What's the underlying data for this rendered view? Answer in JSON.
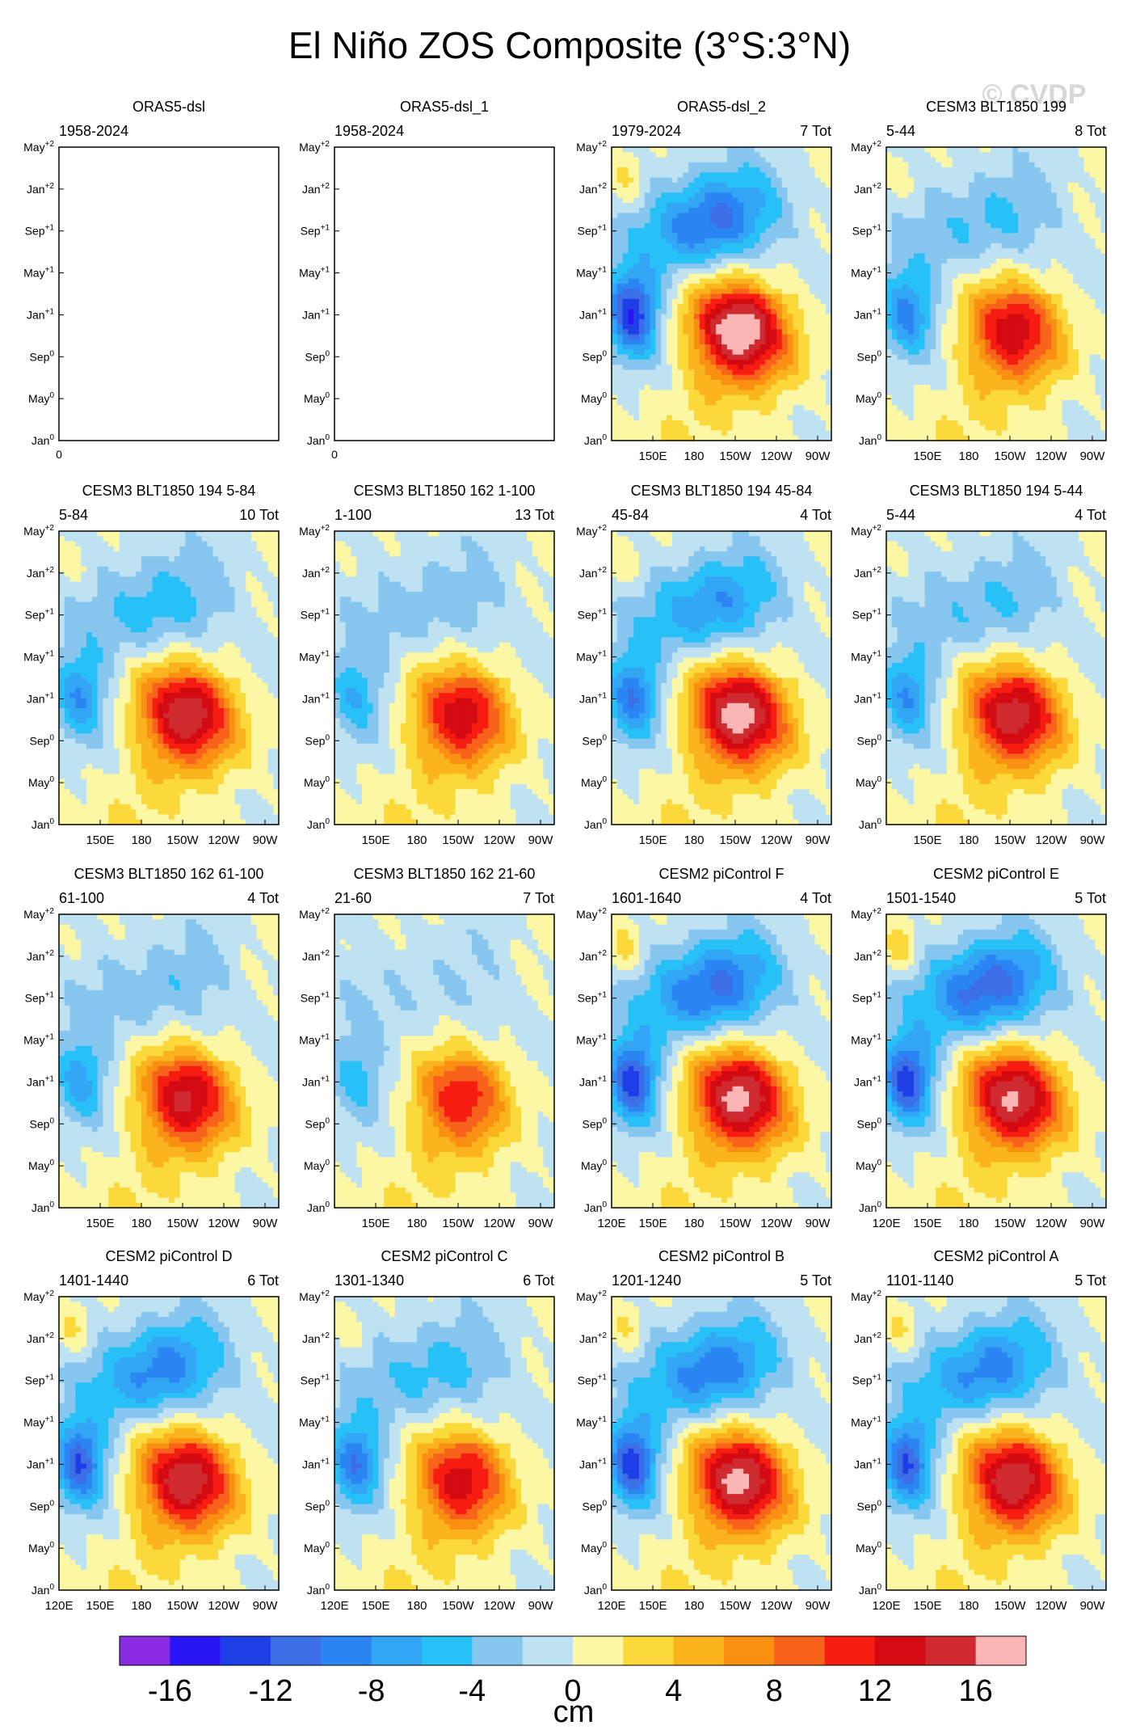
{
  "title": "El Niño ZOS Composite (3°S:3°N)",
  "watermark": "© CVDP",
  "chart_data": {
    "type": "heatmap",
    "title": "El Niño ZOS Composite (3°S:3°N)",
    "x_ticks_full": [
      "120E",
      "150E",
      "180",
      "150W",
      "120W",
      "90W"
    ],
    "y_ticks": [
      {
        "base": "Jan",
        "sup": "0"
      },
      {
        "base": "May",
        "sup": "0"
      },
      {
        "base": "Sep",
        "sup": "0"
      },
      {
        "base": "Jan",
        "sup": "+1"
      },
      {
        "base": "May",
        "sup": "+1"
      },
      {
        "base": "Sep",
        "sup": "+1"
      },
      {
        "base": "Jan",
        "sup": "+2"
      },
      {
        "base": "May",
        "sup": "+2"
      }
    ],
    "colorbar": {
      "unit": "cm",
      "levels": [
        -16,
        -12,
        -8,
        -4,
        0,
        4,
        8,
        12,
        16
      ],
      "colors": [
        "#8a2be2",
        "#2a15f5",
        "#1f3fe6",
        "#3c6ee6",
        "#2b86f4",
        "#32a5f5",
        "#27c1f7",
        "#87c6ee",
        "#bfe2f2",
        "#fcf7a4",
        "#fbd93b",
        "#fbb41e",
        "#f99012",
        "#f9621a",
        "#f71c11",
        "#d30a11",
        "#cf2a30",
        "#fcb5b5"
      ]
    },
    "panels": [
      {
        "title": "ORAS5-dsl",
        "period": "1958-2024",
        "count": "",
        "empty": true,
        "amp": 0,
        "kelvin": 0,
        "west": 0,
        "xl": 0,
        "x_zero": "0"
      },
      {
        "title": "ORAS5-dsl_1",
        "period": "1958-2024",
        "count": "",
        "empty": true,
        "amp": 0,
        "kelvin": 0,
        "west": 0,
        "xl": 0,
        "x_zero": "0"
      },
      {
        "title": "ORAS5-dsl_2",
        "period": "1979-2024",
        "count": "7 Tot",
        "amp": 16,
        "kelvin": 0.9,
        "west": 13,
        "xl": 1
      },
      {
        "title": "CESM3 BLT1850 199",
        "period": "5-44",
        "count": "8 Tot",
        "amp": 11,
        "kelvin": 0.5,
        "west": 8,
        "xl": 1
      },
      {
        "title": "CESM3 BLT1850 194 5-84",
        "period": "5-84",
        "count": "10 Tot",
        "amp": 13.5,
        "kelvin": 0.5,
        "west": 7,
        "xl": 1
      },
      {
        "title": "CESM3 BLT1850 162 1-100",
        "period": "1-100",
        "count": "13 Tot",
        "amp": 11,
        "kelvin": 0.35,
        "west": 5,
        "xl": 1
      },
      {
        "title": "CESM3 BLT1850 194 45-84",
        "period": "45-84",
        "count": "4 Tot",
        "amp": 15,
        "kelvin": 0.7,
        "west": 9,
        "xl": 1
      },
      {
        "title": "CESM3 BLT1850 194 5-44",
        "period": "5-44",
        "count": "4 Tot",
        "amp": 13,
        "kelvin": 0.4,
        "west": 7,
        "xl": 1
      },
      {
        "title": "CESM3 BLT1850 162 61-100",
        "period": "61-100",
        "count": "4 Tot",
        "amp": 12,
        "kelvin": 0.35,
        "west": 6,
        "xl": 1
      },
      {
        "title": "CESM3 BLT1850 162 21-60",
        "period": "21-60",
        "count": "7 Tot",
        "amp": 9,
        "kelvin": 0.2,
        "west": 4,
        "xl": 1
      },
      {
        "title": "CESM2 piControl F",
        "period": "1601-1640",
        "count": "4 Tot",
        "amp": 14.5,
        "kelvin": 1.0,
        "west": 12,
        "xl": 2
      },
      {
        "title": "CESM2 piControl E",
        "period": "1501-1540",
        "count": "5 Tot",
        "amp": 14,
        "kelvin": 1.1,
        "west": 12,
        "xl": 2
      },
      {
        "title": "CESM2 piControl D",
        "period": "1401-1440",
        "count": "6 Tot",
        "amp": 13.5,
        "kelvin": 0.9,
        "west": 11,
        "xl": 2
      },
      {
        "title": "CESM2 piControl C",
        "period": "1301-1340",
        "count": "6 Tot",
        "amp": 10.5,
        "kelvin": 0.6,
        "west": 9,
        "xl": 2
      },
      {
        "title": "CESM2 piControl B",
        "period": "1201-1240",
        "count": "5 Tot",
        "amp": 14.5,
        "kelvin": 0.9,
        "west": 12,
        "xl": 2
      },
      {
        "title": "CESM2 piControl A",
        "period": "1101-1140",
        "count": "5 Tot",
        "amp": 13.5,
        "kelvin": 0.9,
        "west": 11,
        "xl": 2
      }
    ]
  }
}
